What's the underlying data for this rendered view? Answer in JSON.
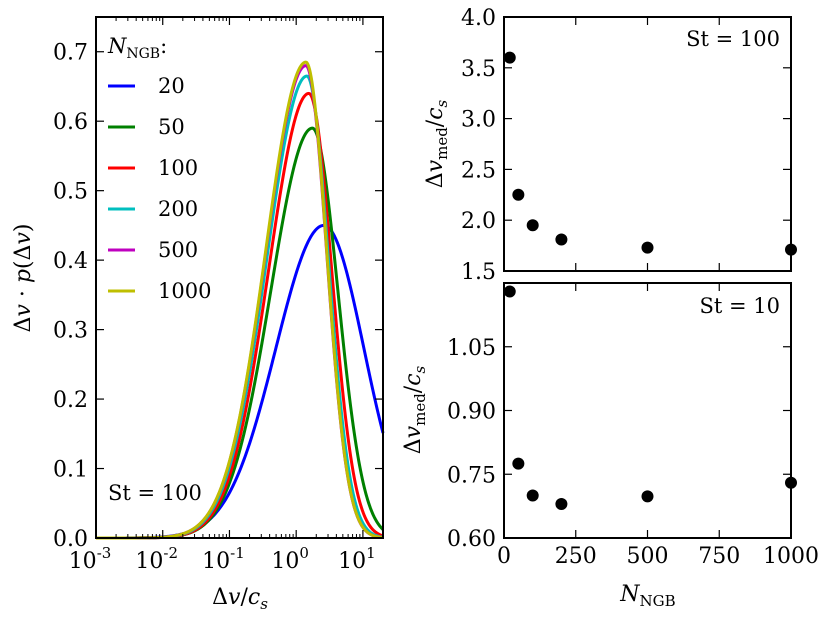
{
  "chart_data": [
    {
      "type": "line",
      "xscale": "log",
      "xlabel": "Δv/c_s",
      "ylabel": "Δv·p(Δv)",
      "xlim": [
        0.001,
        20
      ],
      "ylim": [
        0.0,
        0.75
      ],
      "x_ticks": [
        {
          "value": 0.001,
          "base": "10",
          "exp": "-3"
        },
        {
          "value": 0.01,
          "base": "10",
          "exp": "-2"
        },
        {
          "value": 0.1,
          "base": "10",
          "exp": "-1"
        },
        {
          "value": 1,
          "base": "10",
          "exp": "0"
        },
        {
          "value": 10,
          "base": "10",
          "exp": "1"
        }
      ],
      "y_ticks": [
        {
          "value": 0.0,
          "label": "0.0"
        },
        {
          "value": 0.1,
          "label": "0.1"
        },
        {
          "value": 0.2,
          "label": "0.2"
        },
        {
          "value": 0.3,
          "label": "0.3"
        },
        {
          "value": 0.4,
          "label": "0.4"
        },
        {
          "value": 0.5,
          "label": "0.5"
        },
        {
          "value": 0.6,
          "label": "0.6"
        },
        {
          "value": 0.7,
          "label": "0.7"
        }
      ],
      "legend_title": "N_NGB:",
      "legend_location": "top-left",
      "annotation": "St = 100",
      "series": [
        {
          "name": "20",
          "color": "#0000ff",
          "peak_x": 2.6,
          "peak_y": 0.45,
          "sigma_left": 0.72,
          "sigma_right": 0.6
        },
        {
          "name": "50",
          "color": "#008000",
          "peak_x": 1.75,
          "peak_y": 0.59,
          "sigma_left": 0.62,
          "sigma_right": 0.38
        },
        {
          "name": "100",
          "color": "#ff0000",
          "peak_x": 1.55,
          "peak_y": 0.64,
          "sigma_left": 0.6,
          "sigma_right": 0.34
        },
        {
          "name": "200",
          "color": "#00bfbf",
          "peak_x": 1.45,
          "peak_y": 0.665,
          "sigma_left": 0.6,
          "sigma_right": 0.32
        },
        {
          "name": "500",
          "color": "#bf00bf",
          "peak_x": 1.4,
          "peak_y": 0.68,
          "sigma_left": 0.6,
          "sigma_right": 0.31
        },
        {
          "name": "1000",
          "color": "#bfbf00",
          "peak_x": 1.4,
          "peak_y": 0.685,
          "sigma_left": 0.6,
          "sigma_right": 0.31
        }
      ]
    },
    {
      "type": "scatter",
      "ylabel": "Δv_med/c_s",
      "xlim": [
        0,
        1000
      ],
      "ylim": [
        1.5,
        4.0
      ],
      "y_ticks": [
        "1.5",
        "2.0",
        "2.5",
        "3.0",
        "3.5",
        "4.0"
      ],
      "annotation": "St = 100",
      "x": [
        20,
        50,
        100,
        200,
        500,
        1000
      ],
      "y": [
        3.6,
        2.25,
        1.95,
        1.81,
        1.73,
        1.71
      ]
    },
    {
      "type": "scatter",
      "xlabel": "N_NGB",
      "ylabel": "Δv_med/c_s",
      "xlim": [
        0,
        1000
      ],
      "ylim": [
        0.6,
        1.2
      ],
      "x_ticks": [
        "0",
        "250",
        "500",
        "750",
        "1000"
      ],
      "y_ticks": [
        "0.60",
        "0.75",
        "0.90",
        "1.05"
      ],
      "annotation": "St = 10",
      "x": [
        20,
        50,
        100,
        200,
        500,
        1000
      ],
      "y": [
        1.18,
        0.775,
        0.7,
        0.68,
        0.698,
        0.73
      ]
    }
  ]
}
